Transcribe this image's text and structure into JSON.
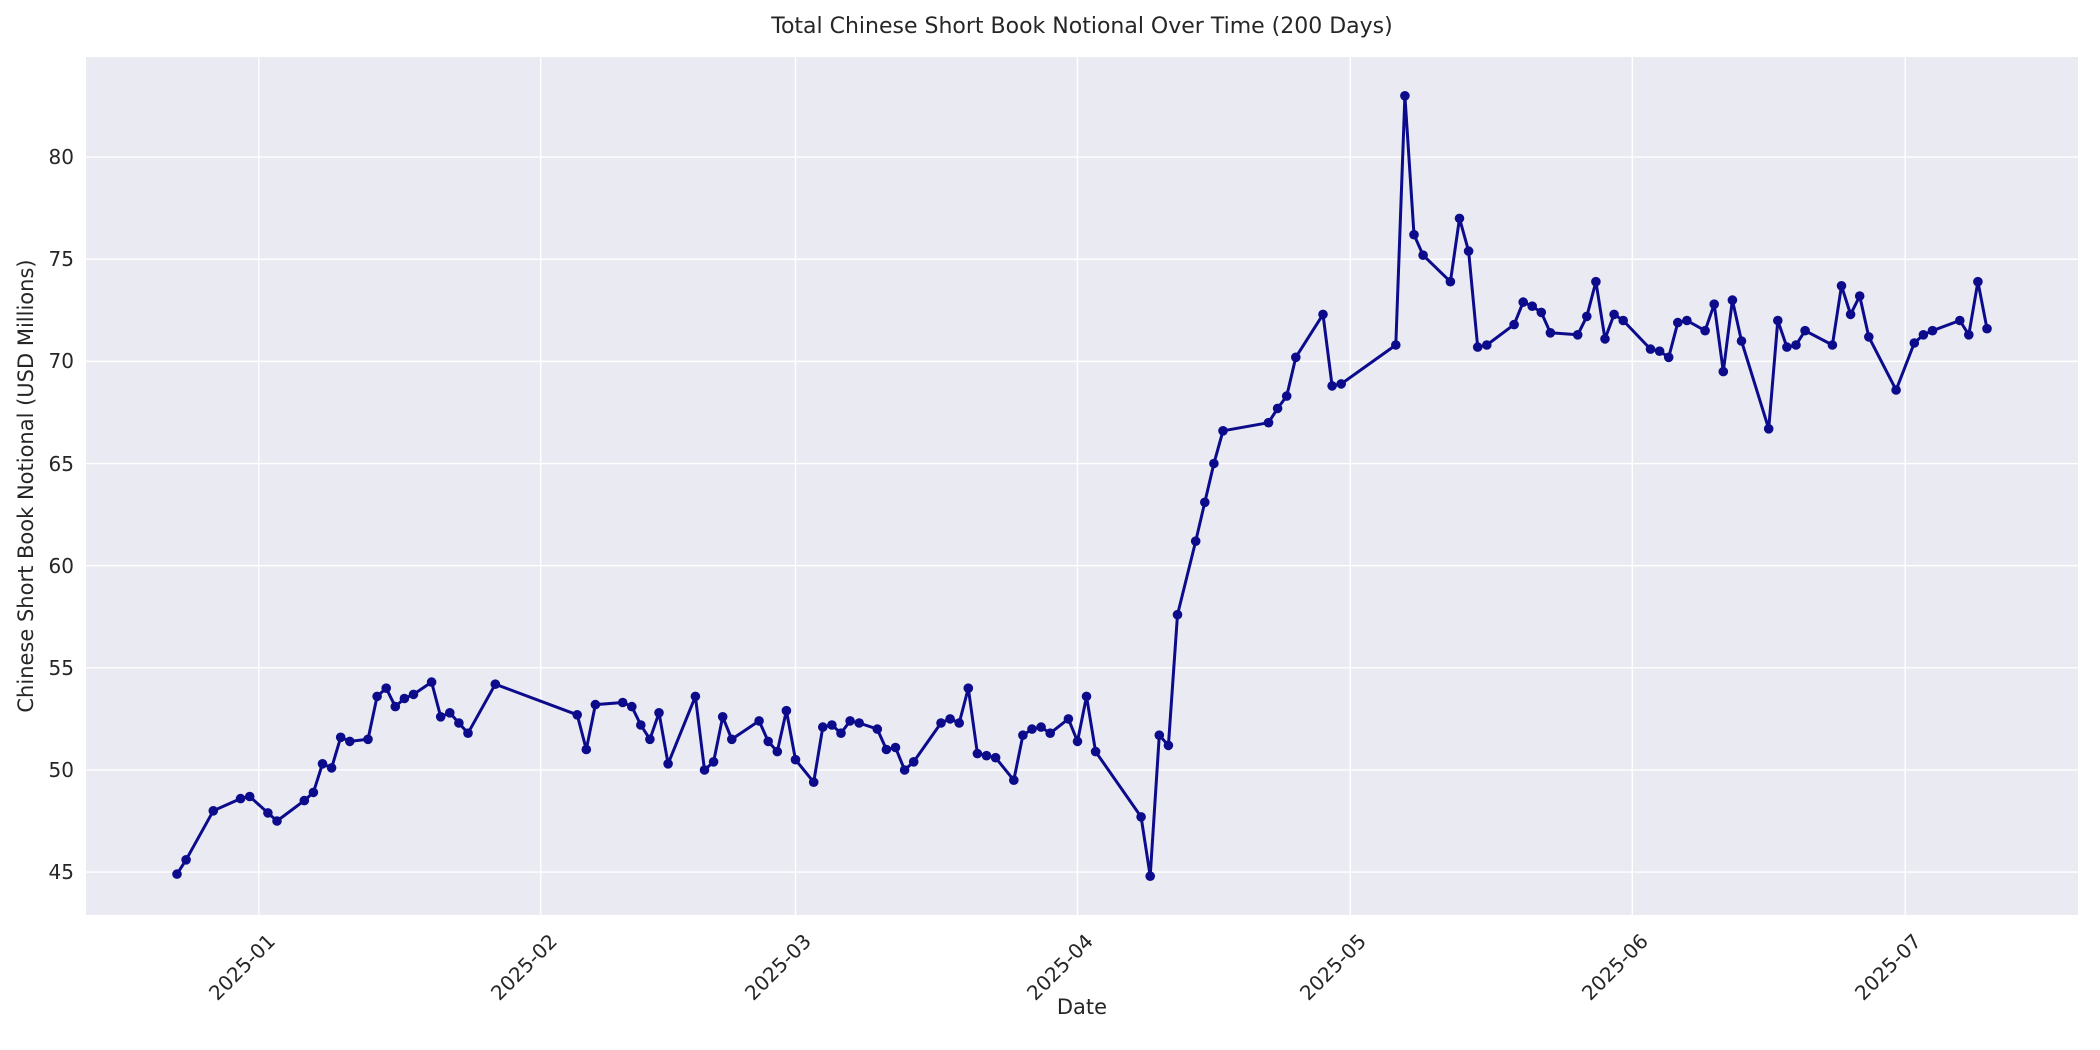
{
  "title": "Total Chinese Short Book Notional Over Time (200 Days)",
  "xlabel": "Date",
  "ylabel": "Chinese Short Book Notional (USD Millions)",
  "colors": {
    "line": "#0b0b8c",
    "marker": "#0b0b8c",
    "plot_background": "#eaeaf2",
    "grid": "#ffffff",
    "text": "#262626",
    "figure_background": "#ffffff"
  },
  "chart_data": {
    "type": "line",
    "title": "Total Chinese Short Book Notional Over Time (200 Days)",
    "xlabel": "Date",
    "ylabel": "Chinese Short Book Notional (USD Millions)",
    "grid": true,
    "legend_position": "none",
    "marker": "circle",
    "xlim": [
      "2024-12-13",
      "2025-07-20"
    ],
    "ylim": [
      42.9,
      84.9
    ],
    "yticks": [
      45,
      50,
      55,
      60,
      65,
      70,
      75,
      80
    ],
    "xticks": [
      {
        "label": "2025-01",
        "date": "2025-01-01"
      },
      {
        "label": "2025-02",
        "date": "2025-02-01"
      },
      {
        "label": "2025-03",
        "date": "2025-03-01"
      },
      {
        "label": "2025-04",
        "date": "2025-04-01"
      },
      {
        "label": "2025-05",
        "date": "2025-05-01"
      },
      {
        "label": "2025-06",
        "date": "2025-06-01"
      },
      {
        "label": "2025-07",
        "date": "2025-07-01"
      }
    ],
    "x": [
      "2024-12-23",
      "2024-12-24",
      "2024-12-27",
      "2024-12-30",
      "2024-12-31",
      "2025-01-02",
      "2025-01-03",
      "2025-01-06",
      "2025-01-07",
      "2025-01-08",
      "2025-01-09",
      "2025-01-10",
      "2025-01-11",
      "2025-01-13",
      "2025-01-14",
      "2025-01-15",
      "2025-01-16",
      "2025-01-17",
      "2025-01-18",
      "2025-01-20",
      "2025-01-21",
      "2025-01-22",
      "2025-01-23",
      "2025-01-24",
      "2025-01-27",
      "2025-02-05",
      "2025-02-06",
      "2025-02-07",
      "2025-02-10",
      "2025-02-11",
      "2025-02-12",
      "2025-02-13",
      "2025-02-14",
      "2025-02-15",
      "2025-02-18",
      "2025-02-19",
      "2025-02-20",
      "2025-02-21",
      "2025-02-22",
      "2025-02-25",
      "2025-02-26",
      "2025-02-27",
      "2025-02-28",
      "2025-03-01",
      "2025-03-03",
      "2025-03-04",
      "2025-03-05",
      "2025-03-06",
      "2025-03-07",
      "2025-03-08",
      "2025-03-10",
      "2025-03-11",
      "2025-03-12",
      "2025-03-13",
      "2025-03-14",
      "2025-03-17",
      "2025-03-18",
      "2025-03-19",
      "2025-03-20",
      "2025-03-21",
      "2025-03-22",
      "2025-03-23",
      "2025-03-25",
      "2025-03-26",
      "2025-03-27",
      "2025-03-28",
      "2025-03-29",
      "2025-03-31",
      "2025-04-01",
      "2025-04-02",
      "2025-04-03",
      "2025-04-08",
      "2025-04-09",
      "2025-04-10",
      "2025-04-11",
      "2025-04-12",
      "2025-04-14",
      "2025-04-15",
      "2025-04-16",
      "2025-04-17",
      "2025-04-22",
      "2025-04-23",
      "2025-04-24",
      "2025-04-25",
      "2025-04-28",
      "2025-04-29",
      "2025-04-30",
      "2025-05-06",
      "2025-05-07",
      "2025-05-08",
      "2025-05-09",
      "2025-05-12",
      "2025-05-13",
      "2025-05-14",
      "2025-05-15",
      "2025-05-16",
      "2025-05-19",
      "2025-05-20",
      "2025-05-21",
      "2025-05-22",
      "2025-05-23",
      "2025-05-26",
      "2025-05-27",
      "2025-05-28",
      "2025-05-29",
      "2025-05-30",
      "2025-05-31",
      "2025-06-03",
      "2025-06-04",
      "2025-06-05",
      "2025-06-06",
      "2025-06-07",
      "2025-06-09",
      "2025-06-10",
      "2025-06-11",
      "2025-06-12",
      "2025-06-13",
      "2025-06-16",
      "2025-06-17",
      "2025-06-18",
      "2025-06-19",
      "2025-06-20",
      "2025-06-23",
      "2025-06-24",
      "2025-06-25",
      "2025-06-26",
      "2025-06-27",
      "2025-06-30",
      "2025-07-02",
      "2025-07-03",
      "2025-07-04",
      "2025-07-07",
      "2025-07-08",
      "2025-07-09",
      "2025-07-10"
    ],
    "y": [
      44.9,
      45.6,
      48.0,
      48.6,
      48.7,
      47.9,
      47.5,
      48.5,
      48.9,
      50.3,
      50.1,
      51.6,
      51.4,
      51.5,
      53.6,
      54.0,
      53.1,
      53.5,
      53.7,
      54.3,
      52.6,
      52.8,
      52.3,
      51.8,
      54.2,
      52.7,
      51.0,
      53.2,
      53.3,
      53.1,
      52.2,
      51.5,
      52.8,
      50.3,
      53.6,
      50.0,
      50.4,
      52.6,
      51.5,
      52.4,
      51.4,
      50.9,
      52.9,
      50.5,
      49.4,
      52.1,
      52.2,
      51.8,
      52.4,
      52.3,
      52.0,
      51.0,
      51.1,
      50.0,
      50.4,
      52.3,
      52.5,
      52.3,
      54.0,
      50.8,
      50.7,
      50.6,
      49.5,
      51.7,
      52.0,
      52.1,
      51.8,
      52.5,
      51.4,
      53.6,
      50.9,
      47.7,
      44.8,
      51.7,
      51.2,
      57.6,
      61.2,
      63.1,
      65.0,
      66.6,
      67.0,
      67.7,
      68.3,
      70.2,
      72.3,
      68.8,
      68.9,
      70.8,
      83.0,
      76.2,
      75.2,
      73.9,
      77.0,
      75.4,
      70.7,
      70.8,
      71.8,
      72.9,
      72.7,
      72.4,
      71.4,
      71.3,
      72.2,
      73.9,
      71.1,
      72.3,
      72.0,
      70.6,
      70.5,
      70.2,
      71.9,
      72.0,
      71.5,
      72.8,
      69.5,
      73.0,
      71.0,
      66.7,
      72.0,
      70.7,
      70.8,
      71.5,
      70.8,
      73.7,
      72.3,
      73.2,
      71.2,
      68.6,
      70.9,
      71.3,
      71.5,
      72.0,
      71.3,
      73.9,
      71.6
    ]
  }
}
